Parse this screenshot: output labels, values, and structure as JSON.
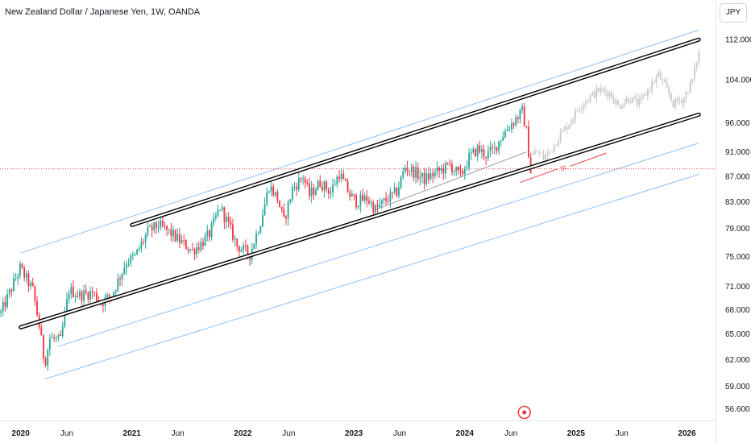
{
  "header": {
    "title": "New Zealand Dollar / Japanese Yen, 1W, OANDA",
    "currency": "JPY"
  },
  "chart_data": {
    "type": "candlestick",
    "scale": "log",
    "symbol": "NZDJPY",
    "interval": "1W",
    "source": "OANDA",
    "y_ticks": [
      112,
      104,
      96,
      91,
      87,
      83,
      79,
      75,
      71,
      68,
      65,
      62,
      59,
      56.6
    ],
    "y_tick_labels": [
      "112.000",
      "104.000",
      "96.000",
      "91.000",
      "87.000",
      "83.000",
      "79.000",
      "75.000",
      "71.000",
      "68.000",
      "65.000",
      "62.000",
      "59.000",
      "56.600"
    ],
    "ylim": [
      55.4,
      120.5
    ],
    "xlim": [
      "2019-10-25",
      "2026-04-05"
    ],
    "x_ticks": [
      {
        "date": "2020-01-01",
        "label": "2020",
        "year": true
      },
      {
        "date": "2020-06-01",
        "label": "Jun",
        "year": false
      },
      {
        "date": "2021-01-01",
        "label": "2021",
        "year": true
      },
      {
        "date": "2021-06-01",
        "label": "Jun",
        "year": false
      },
      {
        "date": "2022-01-01",
        "label": "2022",
        "year": true
      },
      {
        "date": "2022-06-01",
        "label": "Jun",
        "year": false
      },
      {
        "date": "2023-01-01",
        "label": "2023",
        "year": true
      },
      {
        "date": "2023-06-01",
        "label": "Jun",
        "year": false
      },
      {
        "date": "2024-01-01",
        "label": "2024",
        "year": true
      },
      {
        "date": "2024-06-01",
        "label": "Jun",
        "year": false
      },
      {
        "date": "2025-01-01",
        "label": "2025",
        "year": true
      },
      {
        "date": "2025-06-01",
        "label": "Jun",
        "year": false
      },
      {
        "date": "2026-01-01",
        "label": "2026",
        "year": true
      }
    ],
    "current_price": 88.2,
    "colors": {
      "up": "#26a69a",
      "down": "#f23645",
      "projection": "#c8c8c8",
      "channel": "#000000",
      "outer_channel": "#90bff9",
      "stop_loss": "#f23645",
      "price_line": "#f23645"
    },
    "candle_path": [
      [
        "2019-10-28",
        67.6
      ],
      [
        "2019-12-30",
        73.4
      ],
      [
        "2020-02-10",
        70.5
      ],
      [
        "2020-03-02",
        66.0
      ],
      [
        "2020-03-20",
        61.5
      ],
      [
        "2020-04-06",
        64.5
      ],
      [
        "2020-05-11",
        64.2
      ],
      [
        "2020-06-08",
        70.5
      ],
      [
        "2020-07-13",
        69.8
      ],
      [
        "2020-08-24",
        70.2
      ],
      [
        "2020-09-21",
        68.9
      ],
      [
        "2020-10-26",
        69.8
      ],
      [
        "2020-12-14",
        74.3
      ],
      [
        "2021-01-11",
        75.0
      ],
      [
        "2021-02-22",
        78.5
      ],
      [
        "2021-03-29",
        79.5
      ],
      [
        "2021-05-03",
        78.5
      ],
      [
        "2021-06-14",
        77.0
      ],
      [
        "2021-07-19",
        75.8
      ],
      [
        "2021-08-16",
        76.8
      ],
      [
        "2021-09-13",
        78.2
      ],
      [
        "2021-10-18",
        82.2
      ],
      [
        "2021-11-15",
        79.5
      ],
      [
        "2021-12-13",
        76.5
      ],
      [
        "2022-01-24",
        75.3
      ],
      [
        "2022-02-28",
        80.0
      ],
      [
        "2022-03-28",
        85.5
      ],
      [
        "2022-04-25",
        83.5
      ],
      [
        "2022-05-16",
        80.0
      ],
      [
        "2022-06-13",
        85.0
      ],
      [
        "2022-07-18",
        87.0
      ],
      [
        "2022-08-08",
        84.0
      ],
      [
        "2022-09-12",
        86.0
      ],
      [
        "2022-10-17",
        84.5
      ],
      [
        "2022-11-14",
        87.5
      ],
      [
        "2022-12-19",
        84.0
      ],
      [
        "2023-01-09",
        83.0
      ],
      [
        "2023-02-13",
        83.5
      ],
      [
        "2023-03-13",
        81.8
      ],
      [
        "2023-04-10",
        83.0
      ],
      [
        "2023-05-22",
        84.5
      ],
      [
        "2023-06-19",
        88.5
      ],
      [
        "2023-07-24",
        87.5
      ],
      [
        "2023-08-21",
        86.5
      ],
      [
        "2023-09-18",
        87.3
      ],
      [
        "2023-10-16",
        88.0
      ],
      [
        "2023-11-13",
        88.8
      ],
      [
        "2023-12-18",
        87.0
      ],
      [
        "2024-01-15",
        90.0
      ],
      [
        "2024-02-12",
        91.5
      ],
      [
        "2024-03-11",
        90.5
      ],
      [
        "2024-04-08",
        91.5
      ],
      [
        "2024-04-29",
        93.5
      ],
      [
        "2024-05-27",
        95.5
      ],
      [
        "2024-07-08",
        98.0
      ],
      [
        "2024-07-22",
        94.5
      ],
      [
        "2024-08-05",
        87.5
      ]
    ],
    "projection_path": [
      [
        "2024-08-12",
        90.5
      ],
      [
        "2024-08-26",
        91.0
      ],
      [
        "2024-09-16",
        90.0
      ],
      [
        "2024-10-07",
        91.0
      ],
      [
        "2024-11-04",
        93.5
      ],
      [
        "2024-12-09",
        96.0
      ],
      [
        "2025-01-13",
        99.0
      ],
      [
        "2025-02-10",
        100.5
      ],
      [
        "2025-03-17",
        102.0
      ],
      [
        "2025-04-21",
        101.5
      ],
      [
        "2025-05-19",
        99.0
      ],
      [
        "2025-06-23",
        100.5
      ],
      [
        "2025-07-28",
        99.5
      ],
      [
        "2025-08-25",
        102.0
      ],
      [
        "2025-09-29",
        105.0
      ],
      [
        "2025-10-27",
        102.0
      ],
      [
        "2025-11-17",
        99.5
      ],
      [
        "2025-12-22",
        100.5
      ],
      [
        "2026-01-19",
        104.0
      ],
      [
        "2026-02-09",
        109.5
      ]
    ],
    "channels": {
      "upper_black": [
        [
          "2021-01-01",
          79.5
        ],
        [
          "2026-02-09",
          112.0
        ]
      ],
      "lower_black": [
        [
          "2020-01-01",
          65.8
        ],
        [
          "2026-02-09",
          97.5
        ]
      ],
      "outer_top": [
        [
          "2020-01-01",
          75.5
        ],
        [
          "2026-02-09",
          114.0
        ]
      ],
      "outer_mid": [
        [
          "2020-05-01",
          63.5
        ],
        [
          "2026-02-09",
          92.5
        ]
      ],
      "outer_low": [
        [
          "2020-03-20",
          59.8
        ],
        [
          "2026-02-09",
          87.3
        ]
      ],
      "inner_trend": [
        [
          "2023-03-13",
          81.8
        ],
        [
          "2024-07-22",
          91.0
        ]
      ]
    },
    "stop_loss": {
      "label": "SL",
      "from": [
        "2024-07-01",
        86.0
      ],
      "to": [
        "2025-04-10",
        90.8
      ]
    }
  }
}
